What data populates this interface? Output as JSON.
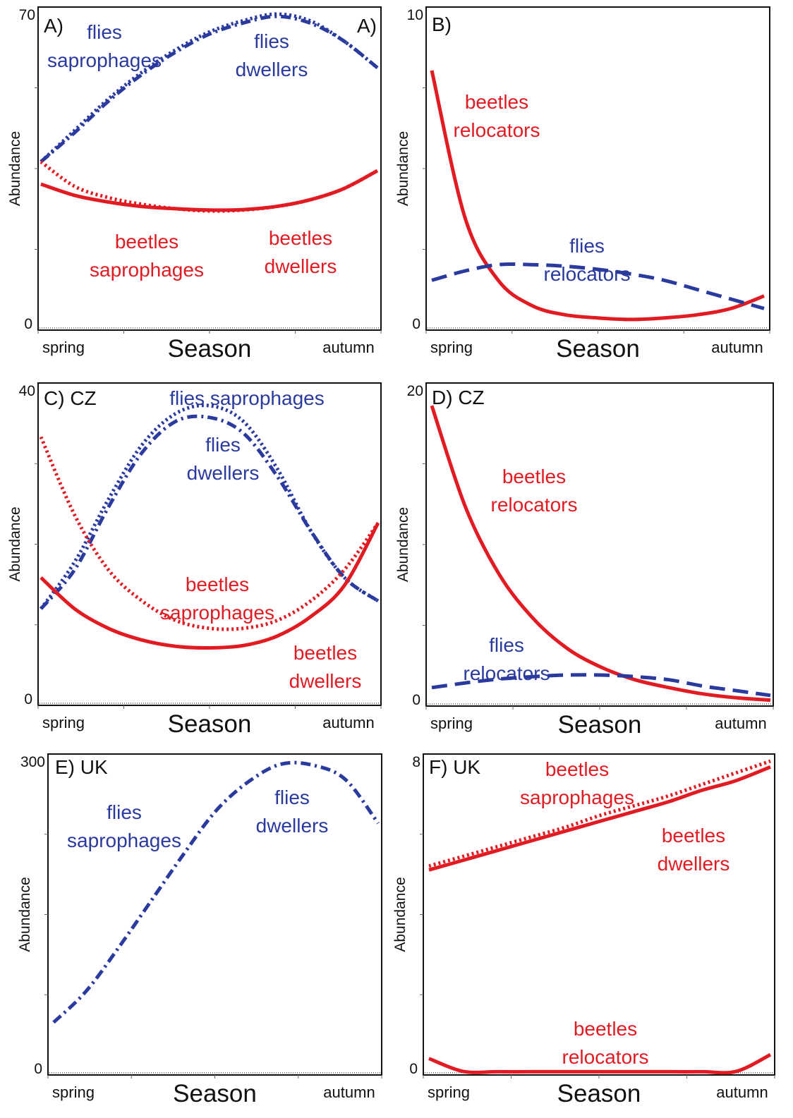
{
  "colors": {
    "red": "#e21b23",
    "blue": "#2a3a9e",
    "black": "#111111"
  },
  "chart_data": [
    {
      "panel": "A)",
      "corner_label": "A)",
      "type": "line",
      "ylabel": "Abundance",
      "xlabel": "Season",
      "ylim": [
        0,
        70
      ],
      "ytick_labels": [
        "0",
        "70"
      ],
      "x_tick_labels": [
        "spring",
        "autumn"
      ],
      "x": [
        0,
        0.1,
        0.2,
        0.3,
        0.4,
        0.5,
        0.6,
        0.7,
        0.8,
        0.9,
        1.0
      ],
      "series": [
        {
          "group": "flies",
          "type": "saprophages",
          "color": "blue",
          "style": "dotted",
          "values": [
            37,
            44,
            51,
            57,
            62,
            66,
            68.5,
            70,
            68.5,
            64,
            58
          ]
        },
        {
          "group": "flies",
          "type": "dwellers",
          "color": "blue",
          "style": "dashdot",
          "values": [
            37,
            43.5,
            50.5,
            56.5,
            61.5,
            65.5,
            68,
            69.5,
            68,
            64,
            58
          ]
        },
        {
          "group": "beetles",
          "type": "saprophages",
          "color": "red",
          "style": "dotted",
          "values": [
            37,
            31.5,
            29,
            27.5,
            26.5,
            26,
            26.2,
            27,
            28.5,
            31,
            35
          ]
        },
        {
          "group": "beetles",
          "type": "dwellers",
          "color": "red",
          "style": "solid",
          "values": [
            32,
            29.5,
            28,
            27,
            26.5,
            26.2,
            26.3,
            27,
            28.5,
            31,
            35
          ]
        }
      ],
      "annotations": [
        {
          "lines": [
            "flies",
            "saprophages"
          ],
          "color": "blue"
        },
        {
          "lines": [
            "flies",
            "dwellers"
          ],
          "color": "blue"
        },
        {
          "lines": [
            "beetles",
            "saprophages"
          ],
          "color": "red"
        },
        {
          "lines": [
            "beetles",
            "dwellers"
          ],
          "color": "red"
        }
      ]
    },
    {
      "panel": "B)",
      "type": "line",
      "ylabel": "Abundance",
      "xlabel": "Season",
      "ylim": [
        0,
        10
      ],
      "ytick_labels": [
        "0",
        "10"
      ],
      "x_tick_labels": [
        "spring",
        "autumn"
      ],
      "x": [
        0,
        0.1,
        0.2,
        0.3,
        0.4,
        0.5,
        0.6,
        0.7,
        0.8,
        0.9,
        1.0
      ],
      "series": [
        {
          "group": "beetles",
          "type": "relocators",
          "color": "red",
          "style": "solid",
          "values": [
            8.2,
            3.5,
            1.5,
            0.7,
            0.4,
            0.3,
            0.25,
            0.3,
            0.4,
            0.6,
            1.0
          ]
        },
        {
          "group": "flies",
          "type": "relocators",
          "color": "blue",
          "style": "dashed",
          "values": [
            1.5,
            1.8,
            2.0,
            2.0,
            1.95,
            1.85,
            1.7,
            1.5,
            1.2,
            0.9,
            0.6
          ]
        }
      ],
      "annotations": [
        {
          "lines": [
            "beetles",
            "relocators"
          ],
          "color": "red"
        },
        {
          "lines": [
            "flies",
            "relocators"
          ],
          "color": "blue"
        }
      ]
    },
    {
      "panel": "C) CZ",
      "type": "line",
      "ylabel": "Abundance",
      "xlabel": "Season",
      "ylim": [
        0,
        40
      ],
      "ytick_labels": [
        "0",
        "40"
      ],
      "x_tick_labels": [
        "spring",
        "autumn"
      ],
      "x": [
        0,
        0.1,
        0.2,
        0.3,
        0.4,
        0.5,
        0.6,
        0.7,
        0.8,
        0.9,
        1.0
      ],
      "series": [
        {
          "group": "flies",
          "type": "saprophages",
          "color": "blue",
          "style": "dotted",
          "values": [
            12,
            18,
            26,
            33,
            37,
            38,
            36,
            30,
            22,
            16,
            13
          ]
        },
        {
          "group": "flies",
          "type": "dwellers",
          "color": "blue",
          "style": "dashdot",
          "values": [
            12,
            17,
            25,
            32,
            36,
            36.5,
            34.5,
            29,
            22,
            16,
            13
          ]
        },
        {
          "group": "beetles",
          "type": "saprophages",
          "color": "red",
          "style": "dotted",
          "values": [
            34,
            24,
            17,
            13,
            10.5,
            9.5,
            9.5,
            10.5,
            13,
            17,
            23
          ]
        },
        {
          "group": "beetles",
          "type": "dwellers",
          "color": "red",
          "style": "solid",
          "values": [
            16,
            12,
            9.5,
            8,
            7.2,
            7,
            7.3,
            8.5,
            11,
            15,
            23
          ]
        }
      ],
      "annotations": [
        {
          "lines": [
            "flies saprophages"
          ],
          "color": "blue"
        },
        {
          "lines": [
            "flies",
            "dwellers"
          ],
          "color": "blue"
        },
        {
          "lines": [
            "beetles",
            "saprophages"
          ],
          "color": "red"
        },
        {
          "lines": [
            "beetles",
            "dwellers"
          ],
          "color": "red"
        }
      ]
    },
    {
      "panel": "D) CZ",
      "type": "line",
      "ylabel": "Abundance",
      "xlabel": "Season",
      "ylim": [
        0,
        20
      ],
      "ytick_labels": [
        "0",
        "20"
      ],
      "x_tick_labels": [
        "spring",
        "autumn"
      ],
      "x": [
        0,
        0.1,
        0.2,
        0.3,
        0.4,
        0.5,
        0.6,
        0.7,
        0.8,
        0.9,
        1.0
      ],
      "series": [
        {
          "group": "beetles",
          "type": "relocators",
          "color": "red",
          "style": "solid",
          "values": [
            19,
            12.5,
            8.2,
            5.4,
            3.5,
            2.3,
            1.5,
            1.0,
            0.6,
            0.35,
            0.2
          ]
        },
        {
          "group": "flies",
          "type": "relocators",
          "color": "blue",
          "style": "dashed",
          "values": [
            1.0,
            1.3,
            1.55,
            1.7,
            1.8,
            1.8,
            1.7,
            1.5,
            1.1,
            0.8,
            0.5
          ]
        }
      ],
      "annotations": [
        {
          "lines": [
            "beetles",
            "relocators"
          ],
          "color": "red"
        },
        {
          "lines": [
            "flies",
            "relocators"
          ],
          "color": "blue"
        }
      ]
    },
    {
      "panel": "E) UK",
      "type": "line",
      "ylabel": "Abundance",
      "xlabel": "Season",
      "ylim": [
        0,
        300
      ],
      "ytick_labels": [
        "0",
        "300"
      ],
      "x_tick_labels": [
        "spring",
        "autumn"
      ],
      "x": [
        0,
        0.1,
        0.2,
        0.3,
        0.4,
        0.5,
        0.6,
        0.7,
        0.8,
        0.9,
        1.0
      ],
      "series": [
        {
          "group": "flies",
          "type": "dwellers / saprophages",
          "color": "blue",
          "style": "dashdot",
          "values": [
            48,
            78,
            120,
            165,
            210,
            252,
            280,
            297,
            296,
            282,
            240
          ]
        }
      ],
      "annotations": [
        {
          "lines": [
            "flies",
            "saprophages"
          ],
          "color": "blue"
        },
        {
          "lines": [
            "flies",
            "dwellers"
          ],
          "color": "blue"
        }
      ]
    },
    {
      "panel": "F) UK",
      "type": "line",
      "ylabel": "Abundance",
      "xlabel": "Season",
      "ylim": [
        0,
        8
      ],
      "ytick_labels": [
        "0",
        "8"
      ],
      "x_tick_labels": [
        "spring",
        "autumn"
      ],
      "x": [
        0,
        0.1,
        0.2,
        0.3,
        0.4,
        0.5,
        0.6,
        0.7,
        0.8,
        0.9,
        1.0
      ],
      "series": [
        {
          "group": "beetles",
          "type": "saprophages",
          "color": "red",
          "style": "dotted",
          "values": [
            5.3,
            5.55,
            5.8,
            6.05,
            6.3,
            6.6,
            6.85,
            7.1,
            7.4,
            7.7,
            8.0
          ]
        },
        {
          "group": "beetles",
          "type": "dwellers",
          "color": "red",
          "style": "solid",
          "values": [
            5.2,
            5.45,
            5.7,
            5.95,
            6.2,
            6.45,
            6.7,
            6.95,
            7.25,
            7.5,
            7.85
          ]
        },
        {
          "group": "beetles",
          "type": "relocators",
          "color": "red",
          "style": "solid",
          "values": [
            0.35,
            0.02,
            0.01,
            0.01,
            0.01,
            0.01,
            0.01,
            0.01,
            0.01,
            0.02,
            0.45
          ]
        }
      ],
      "annotations": [
        {
          "lines": [
            "beetles",
            "saprophages"
          ],
          "color": "red"
        },
        {
          "lines": [
            "beetles",
            "dwellers"
          ],
          "color": "red"
        },
        {
          "lines": [
            "beetles",
            "relocators"
          ],
          "color": "red"
        }
      ]
    }
  ]
}
